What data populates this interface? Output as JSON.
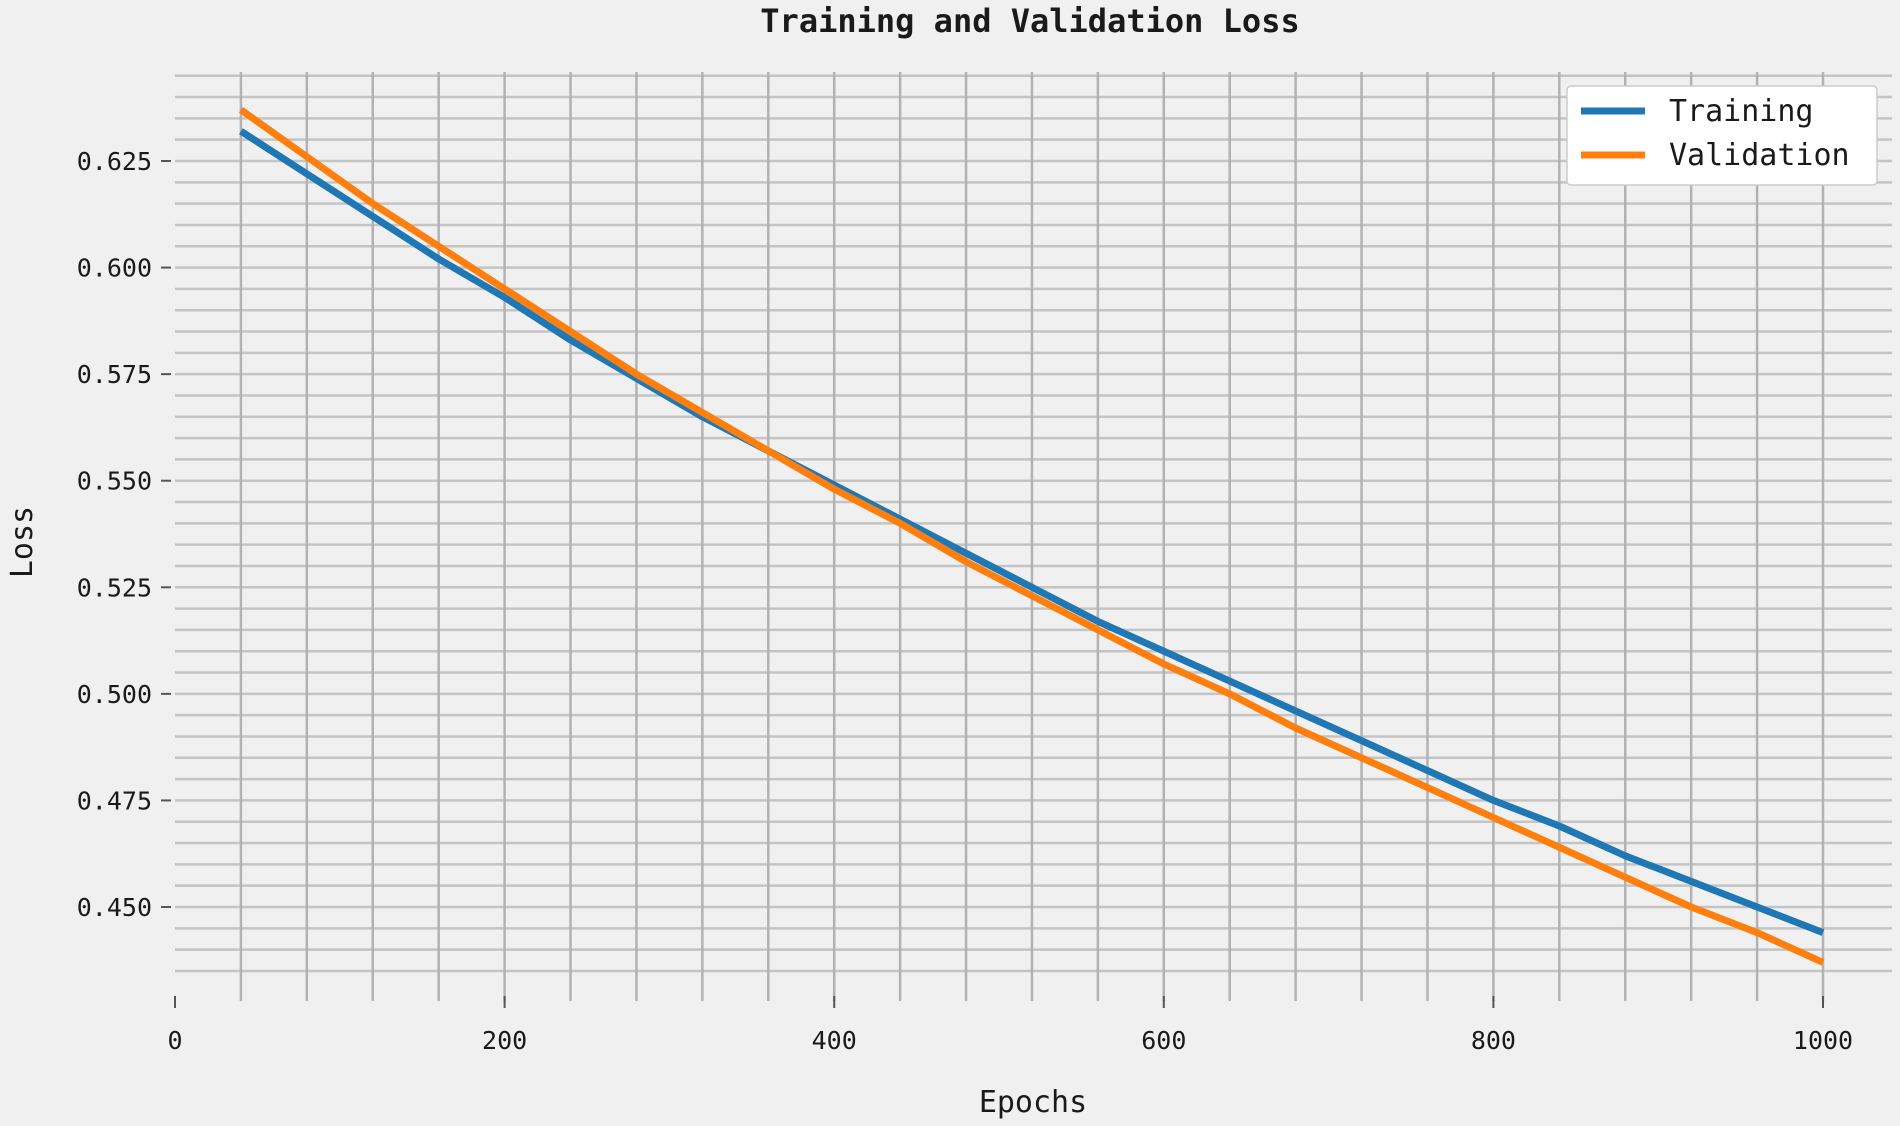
{
  "chart_data": {
    "type": "line",
    "title": "Training and Validation Loss",
    "xlabel": "Epochs",
    "ylabel": "Loss",
    "xlim": [
      0,
      1000
    ],
    "ylim": [
      0.432,
      0.66
    ],
    "x_ticks": [
      0,
      200,
      400,
      600,
      800,
      1000
    ],
    "x_tick_labels": [
      "0",
      "200",
      "400",
      "600",
      "800",
      "1000"
    ],
    "y_ticks": [
      0.45,
      0.475,
      0.5,
      0.525,
      0.55,
      0.575,
      0.6,
      0.625
    ],
    "y_tick_labels": [
      "0.450",
      "0.475",
      "0.500",
      "0.525",
      "0.550",
      "0.575",
      "0.600",
      "0.625"
    ],
    "grid": true,
    "legend_position": "top-right",
    "x": [
      40,
      80,
      120,
      160,
      200,
      240,
      280,
      320,
      360,
      400,
      440,
      480,
      520,
      560,
      600,
      640,
      680,
      720,
      760,
      800,
      840,
      880,
      920,
      960,
      1000
    ],
    "series": [
      {
        "name": "Training",
        "color": "#1f77b4",
        "values": [
          0.632,
          0.622,
          0.612,
          0.602,
          0.593,
          0.583,
          0.574,
          0.565,
          0.557,
          0.549,
          0.541,
          0.533,
          0.525,
          0.517,
          0.51,
          0.503,
          0.496,
          0.489,
          0.482,
          0.475,
          0.469,
          0.462,
          0.456,
          0.45,
          0.444
        ]
      },
      {
        "name": "Validation",
        "color": "#ff7f0e",
        "values": [
          0.637,
          0.626,
          0.615,
          0.605,
          0.595,
          0.585,
          0.575,
          0.566,
          0.557,
          0.548,
          0.54,
          0.531,
          0.523,
          0.515,
          0.507,
          0.5,
          0.492,
          0.485,
          0.478,
          0.471,
          0.464,
          0.457,
          0.45,
          0.444,
          0.437
        ]
      }
    ]
  }
}
